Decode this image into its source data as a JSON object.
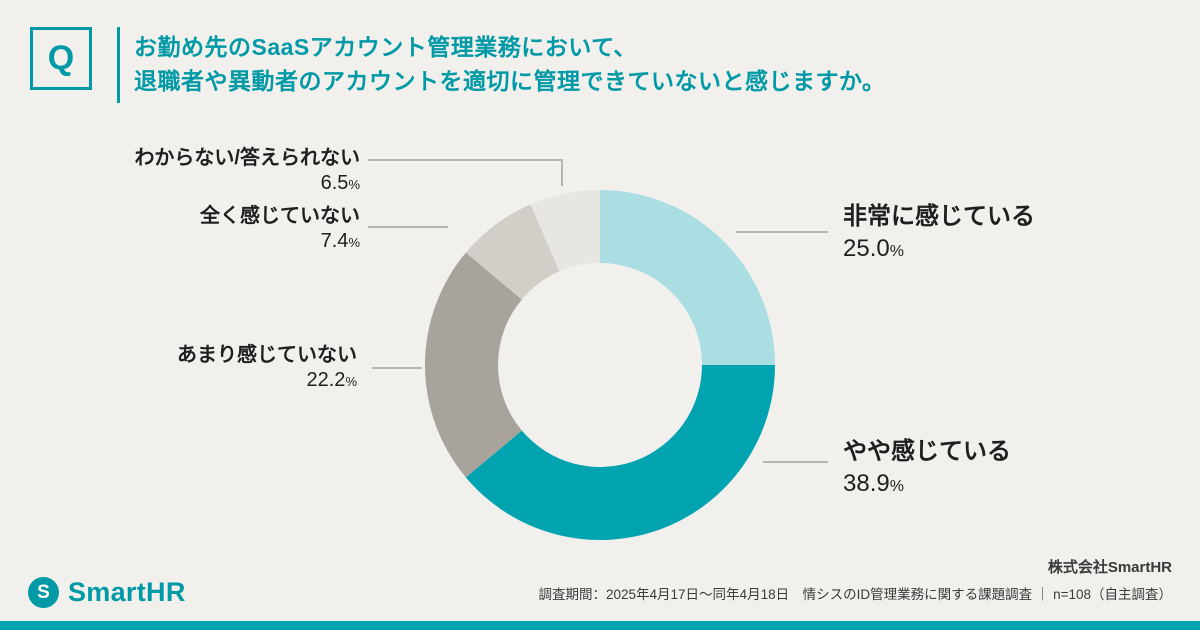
{
  "colors": {
    "background": "#F1F0ED",
    "accent": "#0099A6",
    "bottom_bar": "#00A4B0",
    "leader_line": "#B8B5AF",
    "text_dark": "#1F1F1F"
  },
  "question": {
    "badge": "Q",
    "line1": "お勤め先のSaaSアカウント管理業務において、",
    "line2": "退職者や異動者のアカウントを適切に管理できていないと感じますか。"
  },
  "chart_data": {
    "type": "pie",
    "donut": true,
    "title": "お勤め先のSaaSアカウント管理業務において、退職者や異動者のアカウントを適切に管理できていないと感じますか。",
    "start_angle_deg": 0,
    "direction": "clockwise",
    "unit": "%",
    "segments": [
      {
        "label": "非常に感じている",
        "value": 25.0,
        "display": "25.0",
        "color": "#ABDEE3"
      },
      {
        "label": "やや感じている",
        "value": 38.9,
        "display": "38.9",
        "color": "#00A3AF"
      },
      {
        "label": "あまり感じていない",
        "value": 22.2,
        "display": "22.2",
        "color": "#A8A49B"
      },
      {
        "label": "全く感じていない",
        "value": 7.4,
        "display": "7.4",
        "color": "#D2CFC8"
      },
      {
        "label": "わからない/答えられない",
        "value": 6.5,
        "display": "6.5",
        "color": "#E8E6E2"
      }
    ]
  },
  "footer": {
    "logo_glyph": "S",
    "logo_text": "SmartHR",
    "company": "株式会社SmartHR",
    "survey_note": "調査期間：2025年4月17日〜同年4月18日　情シスのID管理業務に関する課題調査 ｜ n=108（自主調査）"
  }
}
